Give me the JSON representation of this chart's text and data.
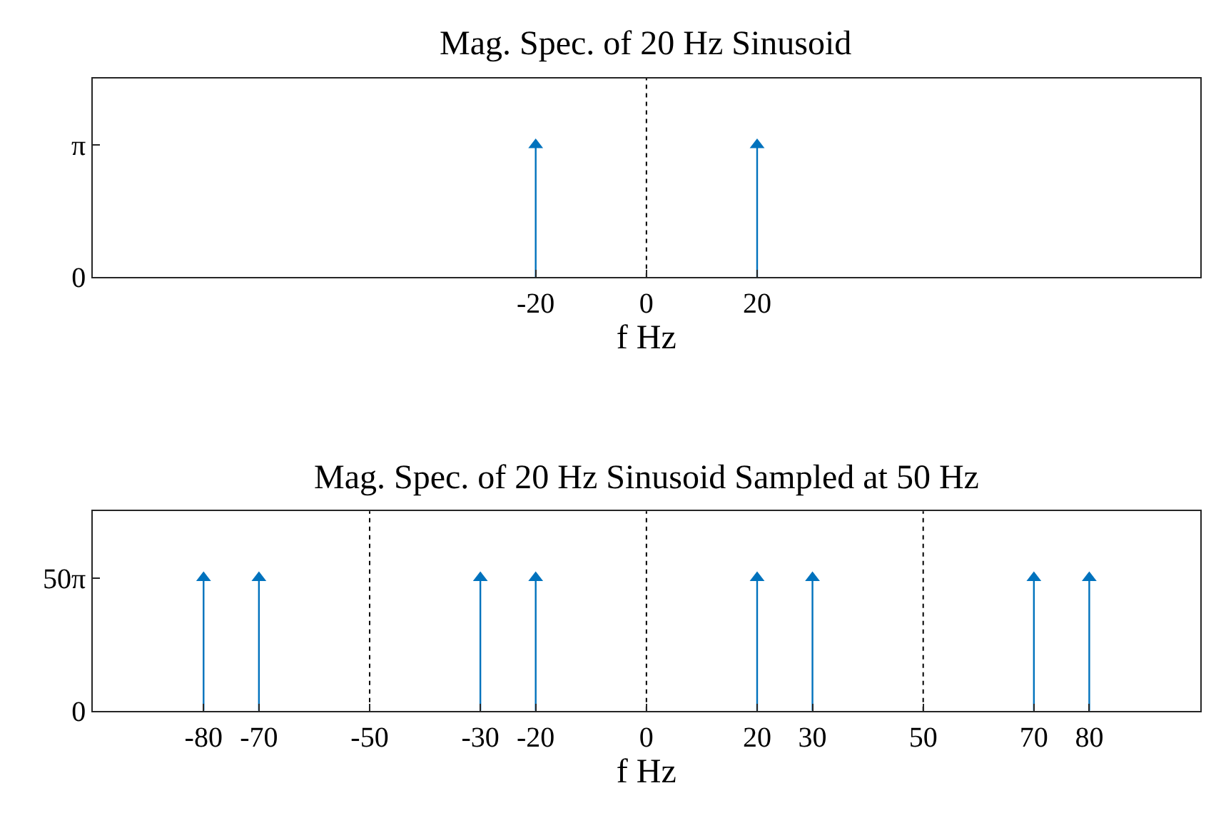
{
  "chart_data": [
    {
      "type": "lollipop",
      "title": "Mag. Spec. of 20 Hz Sinusoid",
      "xlabel": "f Hz",
      "x": [
        -20,
        20
      ],
      "values": [
        3.14,
        3.14
      ],
      "color": "#0072bd",
      "marker": "triangle",
      "xlim": [
        -100,
        100
      ],
      "xticks": [
        -20,
        0,
        20
      ],
      "ylim": [
        0,
        4.712
      ],
      "yticks": [
        0,
        {
          "value": 3.14,
          "label": "π"
        }
      ],
      "grid": false,
      "ref_lines": [
        {
          "axis": "x",
          "value": 0,
          "line_style": "dotted",
          "color": "#000000"
        }
      ]
    },
    {
      "type": "lollipop",
      "title": "Mag. Spec. of 20 Hz Sinusoid Sampled at 50 Hz",
      "xlabel": "f Hz",
      "x": [
        -80,
        -70,
        -30,
        -20,
        20,
        30,
        70,
        80
      ],
      "values": [
        157,
        157,
        157,
        157,
        157,
        157,
        157,
        157
      ],
      "color": "#0072bd",
      "marker": "triangle",
      "xlim": [
        -100,
        100
      ],
      "xticks": [
        -80,
        -70,
        -50,
        -30,
        -20,
        0,
        20,
        30,
        50,
        70,
        80
      ],
      "ylim": [
        0,
        235.6
      ],
      "yticks": [
        0,
        {
          "value": 157,
          "label": "50π"
        }
      ],
      "grid": false,
      "ref_lines": [
        {
          "axis": "x",
          "value": -50,
          "line_style": "dotted",
          "color": "#000000"
        },
        {
          "axis": "x",
          "value": 0,
          "line_style": "dotted",
          "color": "#000000"
        },
        {
          "axis": "x",
          "value": 50,
          "line_style": "dotted",
          "color": "#000000"
        }
      ]
    }
  ]
}
